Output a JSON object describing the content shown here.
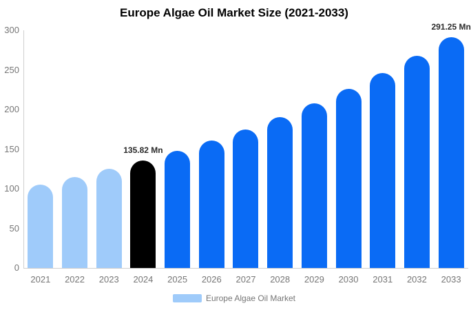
{
  "title": "Europe Algae Oil Market Size (2021-2033)",
  "colors": {
    "bar_historical": "#9fcbfa",
    "bar_highlight": "#000000",
    "bar_forecast": "#0a6bf5",
    "axis_line": "#cfcfcf",
    "tick_text": "#757575",
    "annotation_text": "#2a2a2a",
    "title_text": "#000000"
  },
  "legend": {
    "label": "Europe Algae Oil Market",
    "swatch_color": "#9fcbfa",
    "position": "bottom"
  },
  "chart_data": {
    "type": "bar",
    "title": "Europe Algae Oil Market Size (2021-2033)",
    "categories": [
      "2021",
      "2022",
      "2023",
      "2024",
      "2025",
      "2026",
      "2027",
      "2028",
      "2029",
      "2030",
      "2031",
      "2032",
      "2033"
    ],
    "values": [
      105.3,
      114.6,
      124.8,
      135.82,
      147.8,
      160.9,
      175.2,
      190.7,
      207.6,
      226.0,
      246.0,
      267.8,
      291.25
    ],
    "unit": "Mn",
    "xlabel": "",
    "ylabel": "",
    "ylim": [
      0,
      300
    ],
    "y_ticks": [
      0,
      50,
      100,
      150,
      200,
      250,
      300
    ],
    "grid": false,
    "legend_entries": [
      "Europe Algae Oil Market"
    ],
    "bar_colors": [
      "#9fcbfa",
      "#9fcbfa",
      "#9fcbfa",
      "#000000",
      "#0a6bf5",
      "#0a6bf5",
      "#0a6bf5",
      "#0a6bf5",
      "#0a6bf5",
      "#0a6bf5",
      "#0a6bf5",
      "#0a6bf5",
      "#0a6bf5"
    ],
    "annotations": [
      {
        "index": 3,
        "text": "135.82 Mn"
      },
      {
        "index": 12,
        "text": "291.25 Mn"
      }
    ]
  }
}
